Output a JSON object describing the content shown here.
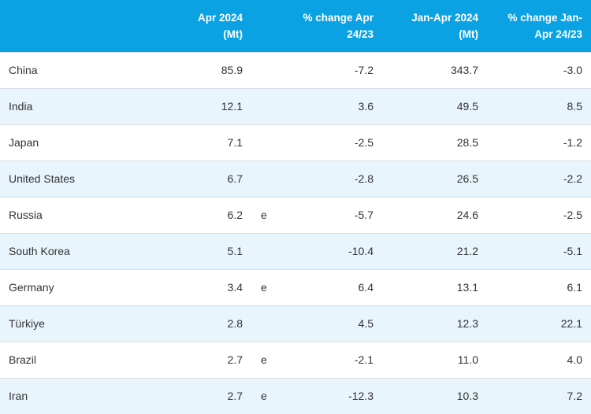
{
  "table": {
    "header": [
      "Apr 2024 (Mt)",
      "% change Apr 24/23",
      "Jan-Apr 2024 (Mt)",
      "% change Jan-Apr 24/23"
    ],
    "rows": [
      [
        "China",
        "85.9",
        null,
        "-7.2",
        "343.7",
        "-3.0"
      ],
      [
        "India",
        "12.1",
        null,
        "3.6",
        "49.5",
        "8.5"
      ],
      [
        "Japan",
        "7.1",
        null,
        "-2.5",
        "28.5",
        "-1.2"
      ],
      [
        "United States",
        "6.7",
        null,
        "-2.8",
        "26.5",
        "-2.2"
      ],
      [
        "Russia",
        "6.2",
        "e",
        "-5.7",
        "24.6",
        "-2.5"
      ],
      [
        "South Korea",
        "5.1",
        null,
        "-10.4",
        "21.2",
        "-5.1"
      ],
      [
        "Germany",
        "3.4",
        "e",
        "6.4",
        "13.1",
        "6.1"
      ],
      [
        "Türkiye",
        "2.8",
        null,
        "4.5",
        "12.3",
        "22.1"
      ],
      [
        "Brazil",
        "2.7",
        "e",
        "-2.1",
        "11.0",
        "4.0"
      ],
      [
        "Iran",
        "2.7",
        "e",
        "-12.3",
        "10.3",
        "7.2"
      ]
    ]
  }
}
